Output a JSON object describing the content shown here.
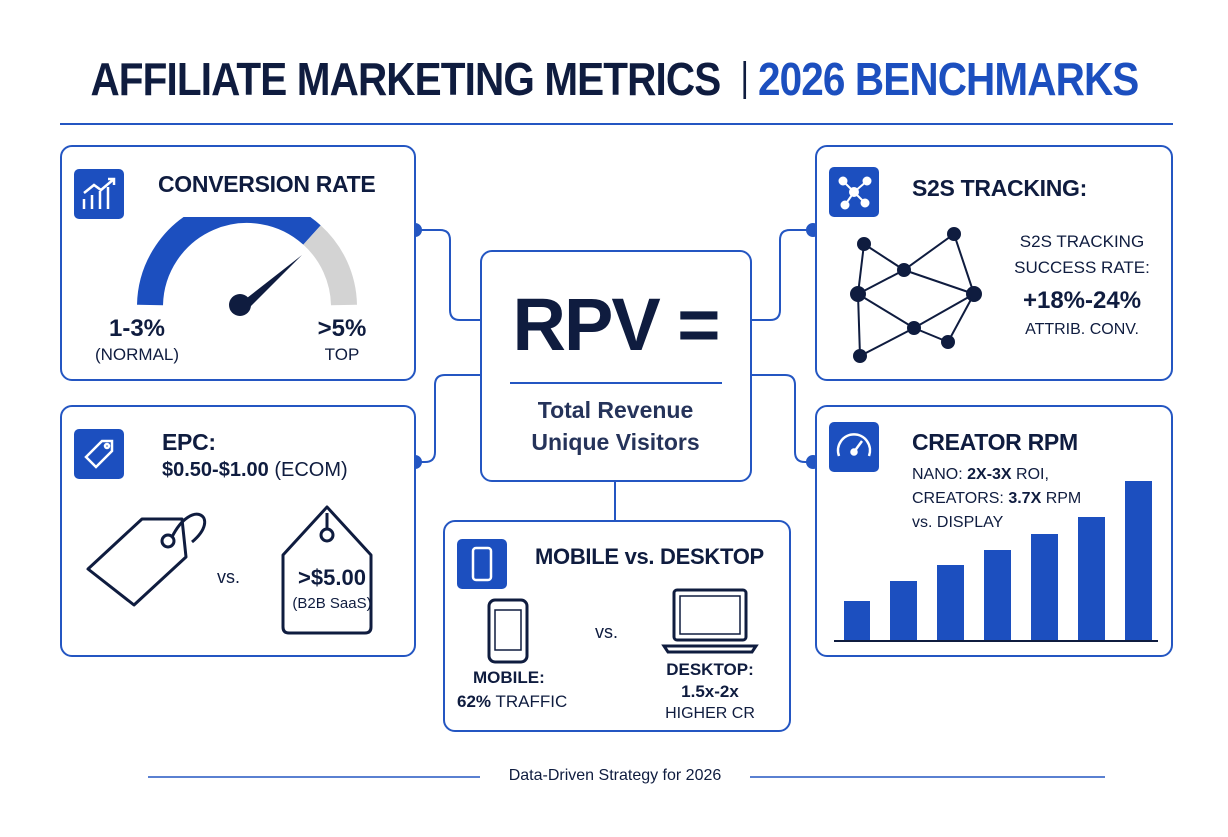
{
  "header": {
    "title": "AFFILIATE MARKETING METRICS",
    "highlight": "2026 BENCHMARKS"
  },
  "conversion_rate": {
    "title": "CONVERSION RATE",
    "normal": {
      "value": "1-3%",
      "label": "(NORMAL)"
    },
    "top": {
      "value": ">5%",
      "label": "TOP"
    }
  },
  "epc": {
    "title": "EPC:",
    "range": "$0.50-$1.00",
    "range_note": "(ECOM)",
    "vs": "vs.",
    "high": ">$5.00",
    "high_note": "(B2B SaaS)"
  },
  "rpv": {
    "title": "RPV =",
    "numerator": "Total Revenue",
    "denominator": "Unique Visitors"
  },
  "mobile_desktop": {
    "title": "MOBILE vs. DESKTOP",
    "vs": "vs.",
    "mobile": {
      "label": "MOBILE:",
      "value": "62%",
      "note": "TRAFFIC"
    },
    "desktop": {
      "label": "DESKTOP:",
      "value": "1.5x-2x",
      "note": "HIGHER CR"
    }
  },
  "s2s": {
    "title": "S2S TRACKING:",
    "subtitle": [
      "S2S TRACKING",
      "SUCCESS RATE:"
    ],
    "value": "+18%-24%",
    "note": "ATTRIB. CONV."
  },
  "creator_rpm": {
    "title": "CREATOR RPM",
    "lines": [
      [
        "NANO:",
        "2X-3X",
        "ROI,"
      ],
      [
        "CREATORS:",
        "3.7X",
        "RPM"
      ],
      [
        "vs. DISPLAY"
      ]
    ]
  },
  "footer": "Data-Driven Strategy for 2026"
}
